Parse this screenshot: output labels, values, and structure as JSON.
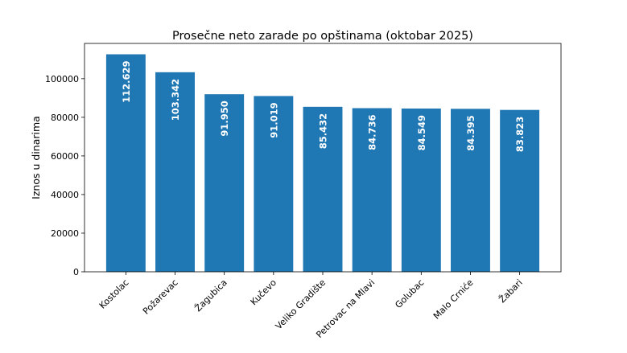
{
  "chart_data": {
    "type": "bar",
    "title": "Prosečne neto zarade po opštinama (oktobar 2025)",
    "xlabel": "",
    "ylabel": "Iznos u dinarima",
    "categories": [
      "Kostolac",
      "Požarevac",
      "Žagubica",
      "Kučevo",
      "Veliko Gradište",
      "Petrovac na Mlavi",
      "Golubac",
      "Malo Crniće",
      "Žabari"
    ],
    "values": [
      112629,
      103342,
      91950,
      91019,
      85432,
      84736,
      84549,
      84395,
      83823
    ],
    "data_labels": [
      "112.629",
      "103.342",
      "91.950",
      "91.019",
      "85.432",
      "84.736",
      "84.549",
      "84.395",
      "83.823"
    ],
    "ylim": [
      0,
      118260
    ],
    "yticks": [
      0,
      20000,
      40000,
      60000,
      80000,
      100000
    ],
    "ytick_labels": [
      "0",
      "20000",
      "40000",
      "60000",
      "80000",
      "100000"
    ],
    "bar_color": "#1f77b4",
    "label_color": "#ffffff",
    "grid": false,
    "legend": "none"
  }
}
